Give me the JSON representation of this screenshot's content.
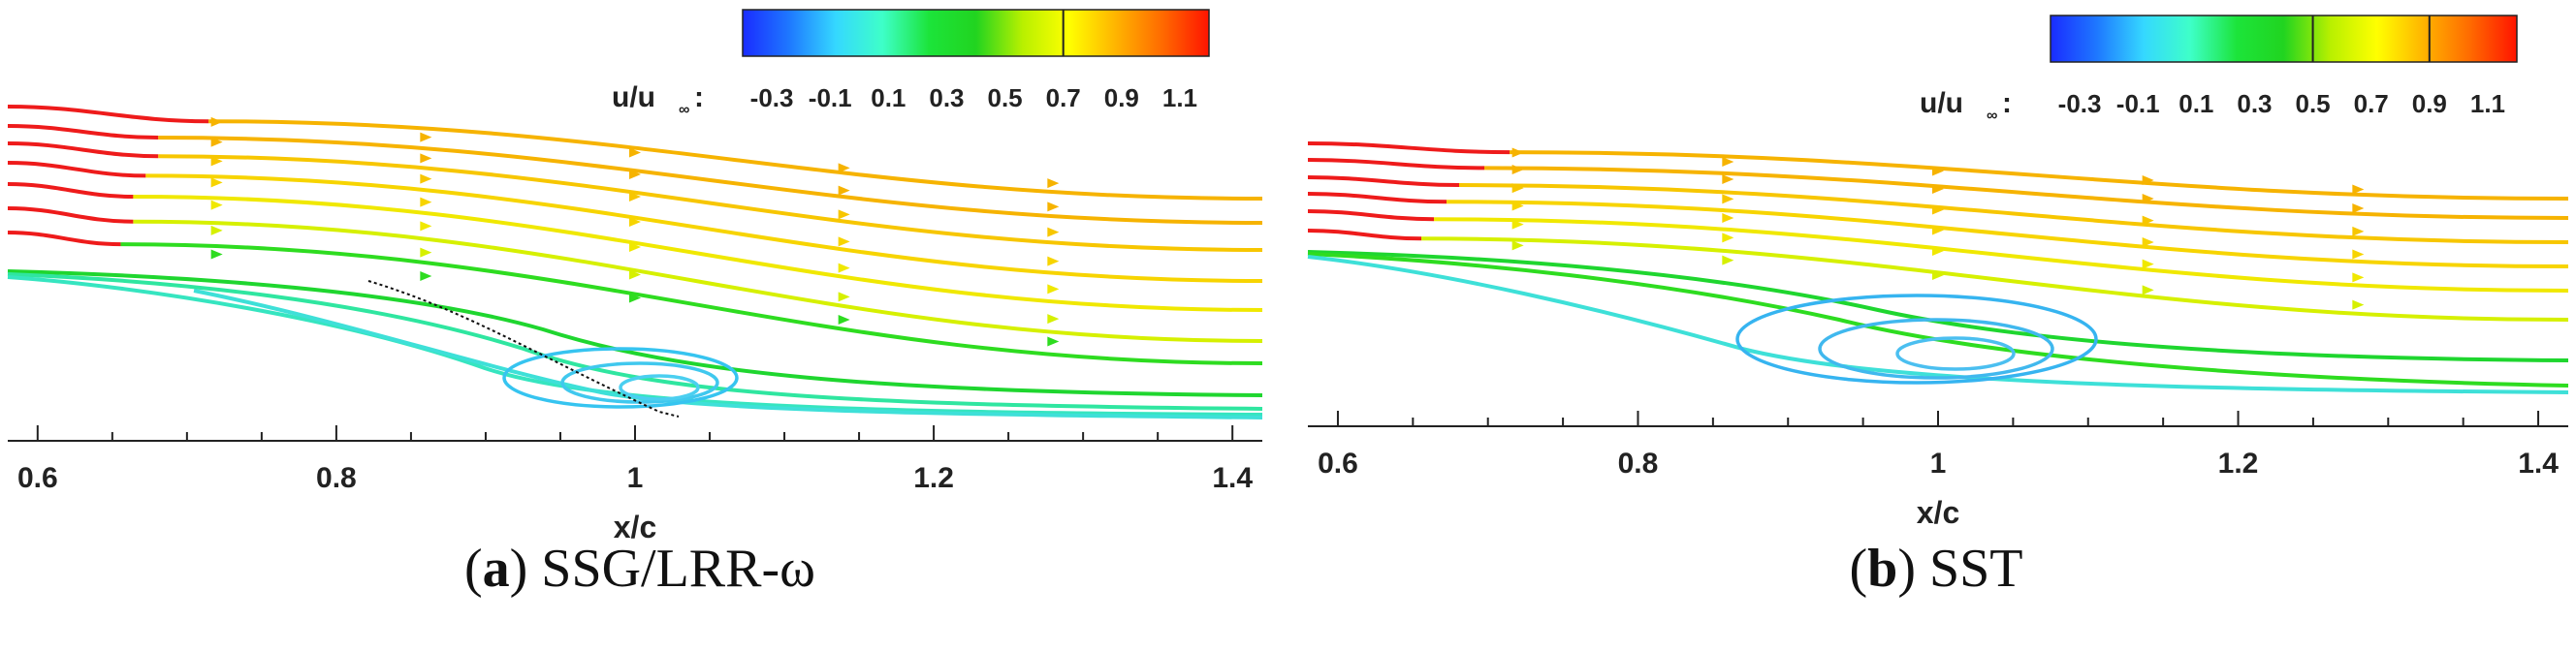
{
  "colorbar": {
    "label": "u/u",
    "sub": "∞",
    "colon": ":",
    "stops": [
      "#1a2cff",
      "#1e78ff",
      "#35d8ff",
      "#3effc8",
      "#1ce43a",
      "#21d420",
      "#b8f000",
      "#ffff00",
      "#ffb400",
      "#ff6a00",
      "#ff1400"
    ]
  },
  "panels": [
    {
      "caption_letter": "a",
      "caption_text": "SSG/LRR-ω",
      "chart_data": {
        "type": "streamline",
        "xlabel": "x/c",
        "xlim": [
          0.58,
          1.42
        ],
        "xticks": [
          "0.6",
          "0.8",
          "1",
          "1.2",
          "1.4"
        ],
        "colorbar_ticks": [
          "-0.3",
          "-0.1",
          "0.1",
          "0.3",
          "0.5",
          "0.7",
          "0.9",
          "1.1"
        ],
        "colorbar_range": [
          -0.4,
          1.2
        ],
        "colorbar_marker": 0.7,
        "separation_x": [
          0.78,
          1.08
        ],
        "vortex_center_x": 0.97
      }
    },
    {
      "caption_letter": "b",
      "caption_text": "SST",
      "chart_data": {
        "type": "streamline",
        "xlabel": "x/c",
        "xlim": [
          0.58,
          1.42
        ],
        "xticks": [
          "0.6",
          "0.8",
          "1",
          "1.2",
          "1.4"
        ],
        "colorbar_ticks": [
          "-0.3",
          "-0.1",
          "0.1",
          "0.3",
          "0.5",
          "0.7",
          "0.9",
          "1.1"
        ],
        "colorbar_range": [
          -0.4,
          1.2
        ],
        "colorbar_marker": 0.5,
        "colorbar_marker2": 0.9,
        "separation_x": [
          0.72,
          1.16
        ],
        "vortex_center_x": 1.0
      }
    }
  ]
}
